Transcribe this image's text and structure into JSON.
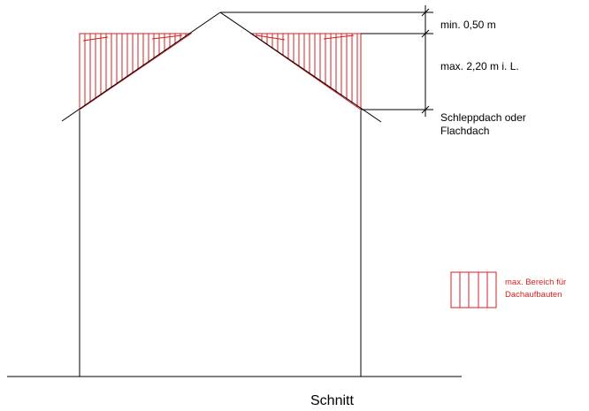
{
  "labels": {
    "min_height": "min. 0,50 m",
    "max_height": "max. 2,20 m i. L.",
    "roof_type_line1": "Schleppdach oder",
    "roof_type_line2": "Flachdach",
    "legend_line1": "max. Bereich für",
    "legend_line2": "Dachaufbauten",
    "caption": "Schnitt"
  },
  "colors": {
    "line": "#000000",
    "hatch": "#d42020"
  }
}
